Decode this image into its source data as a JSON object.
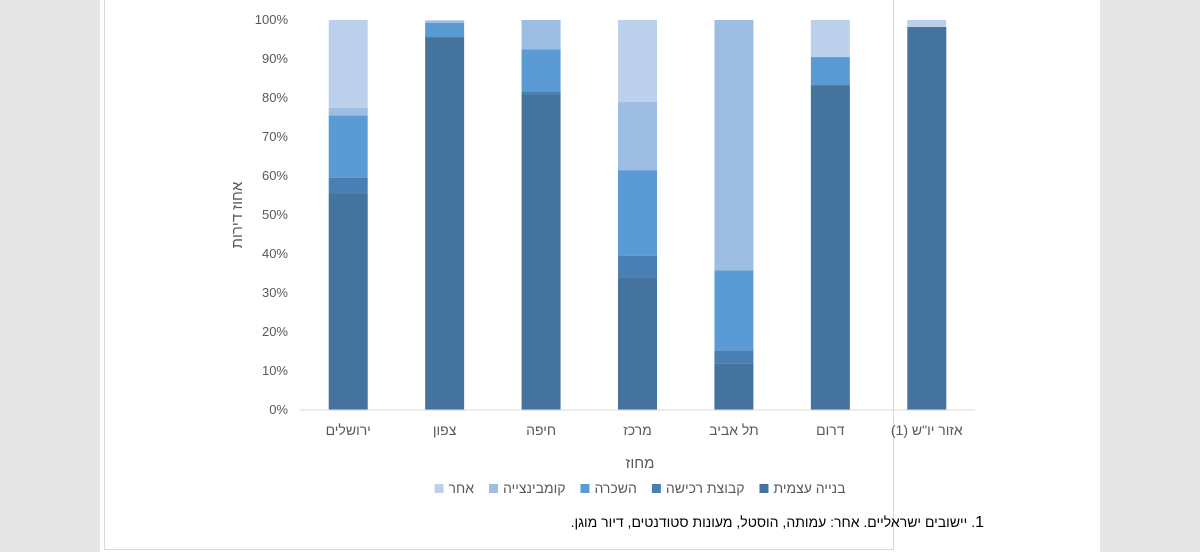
{
  "chart_data": {
    "type": "stacked-bar-100",
    "title": "",
    "xlabel": "מחוז",
    "ylabel": "אחוז דירות",
    "ylim": [
      0,
      100
    ],
    "yticks": [
      "0%",
      "10%",
      "20%",
      "30%",
      "40%",
      "50%",
      "60%",
      "70%",
      "80%",
      "90%",
      "100%"
    ],
    "categories": [
      "ירושלים",
      "צפון",
      "חיפה",
      "מרכז",
      "תל אביב",
      "דרום",
      "אזור יו\"ש (1)"
    ],
    "series": [
      {
        "name": "בנייה עצמית",
        "color": "#44749d",
        "values": [
          55.5,
          95.5,
          81,
          34,
          12,
          83.3,
          98.2
        ]
      },
      {
        "name": "קבוצת רכישה",
        "color": "#4a7fb3",
        "values": [
          4,
          0.3,
          0.7,
          5.5,
          3.3,
          0.2,
          0
        ]
      },
      {
        "name": "השכרה",
        "color": "#5b9bd5",
        "values": [
          16,
          3.5,
          10.8,
          22,
          20.5,
          7,
          0
        ]
      },
      {
        "name": "קומבינצייה",
        "color": "#9dbde2",
        "values": [
          2,
          0.5,
          7.5,
          17.5,
          64.2,
          0,
          0
        ]
      },
      {
        "name": "אחר",
        "color": "#bdd0eb",
        "values": [
          22.5,
          0.2,
          0,
          21,
          0,
          9.5,
          1.8
        ]
      }
    ],
    "grid": false,
    "legend": "bottom"
  },
  "footnote": {
    "number": "1",
    "text": ". יישובים ישראליים. אחר: עמותה, הוסטל, מעונות סטודנטים, דיור מוגן."
  }
}
